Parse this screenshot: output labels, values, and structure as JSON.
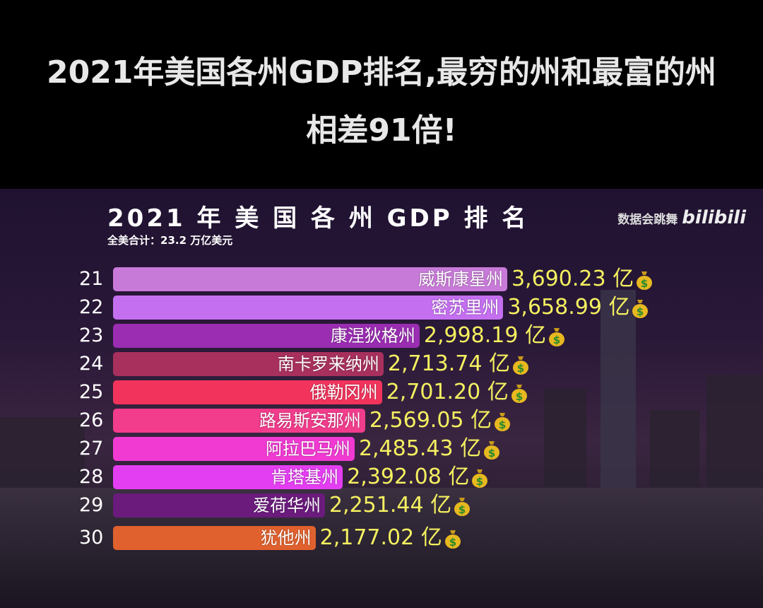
{
  "headline": "2021年美国各州GDP排名,最穷的州和最富的州相差91倍!",
  "header": {
    "title": "2021 年 美 国 各 州 GDP 排 名",
    "total": "全美合计：23.2 万亿美元",
    "brand_text": "数据会跳舞",
    "brand_logo": "bilibili"
  },
  "chart_data": {
    "type": "bar",
    "orientation": "horizontal",
    "unit": "亿",
    "unit_icon": "money-bag-icon",
    "categories": [
      "威斯康星州",
      "密苏里州",
      "康涅狄格州",
      "南卡罗来纳州",
      "俄勒冈州",
      "路易斯安那州",
      "阿拉巴马州",
      "肯塔基州",
      "爱荷华州",
      "犹他州"
    ],
    "ranks": [
      "21",
      "22",
      "23",
      "24",
      "25",
      "26",
      "27",
      "28",
      "29",
      "30"
    ],
    "values": [
      3690.23,
      3658.99,
      2998.19,
      2713.74,
      2701.2,
      2569.05,
      2485.43,
      2392.08,
      2251.44,
      2177.02
    ],
    "labels": [
      "3,690.23",
      "3,658.99",
      "2,998.19",
      "2,713.74",
      "2,701.20",
      "2,569.05",
      "2,485.43",
      "2,392.08",
      "2,251.44",
      "2,177.02"
    ],
    "colors": [
      "#c87ad8",
      "#c46ff0",
      "#9a2db2",
      "#a8305c",
      "#f2345c",
      "#f23c8c",
      "#f03ad2",
      "#e43ef2",
      "#6a1b7c",
      "#e0612e"
    ],
    "value_color": "#f4f060"
  }
}
